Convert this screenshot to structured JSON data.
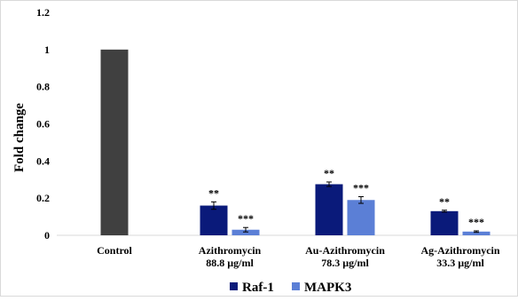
{
  "chart_data": {
    "type": "bar",
    "title": "",
    "xlabel": "",
    "ylabel": "Fold change",
    "ylim": [
      0,
      1.2
    ],
    "yticks": [
      "0",
      "0.2",
      "0.4",
      "0.6",
      "0.8",
      "1",
      "1.2"
    ],
    "grid": false,
    "legend_position": "bottom",
    "categories": [
      {
        "lines": [
          "Control"
        ]
      },
      {
        "lines": [
          "Azithromycin",
          "88.8 µg/ml"
        ]
      },
      {
        "lines": [
          "Au-Azithromycin",
          "78.3 µg/ml"
        ]
      },
      {
        "lines": [
          "Ag-Azithromycin",
          "33.3 µg/ml"
        ]
      }
    ],
    "control": {
      "value": 1.0,
      "error": 0.0,
      "color": "#404040"
    },
    "series": [
      {
        "name": "Raf-1",
        "color": "#0a1a7a",
        "values": [
          null,
          0.16,
          0.275,
          0.13
        ],
        "errors": [
          null,
          0.02,
          0.012,
          0.005
        ],
        "significance": [
          null,
          "**",
          "**",
          "**"
        ]
      },
      {
        "name": "MAPK3",
        "color": "#5b7fd6",
        "values": [
          null,
          0.03,
          0.19,
          0.02
        ],
        "errors": [
          null,
          0.012,
          0.018,
          0.004
        ],
        "significance": [
          null,
          "***",
          "***",
          "***"
        ]
      }
    ]
  }
}
